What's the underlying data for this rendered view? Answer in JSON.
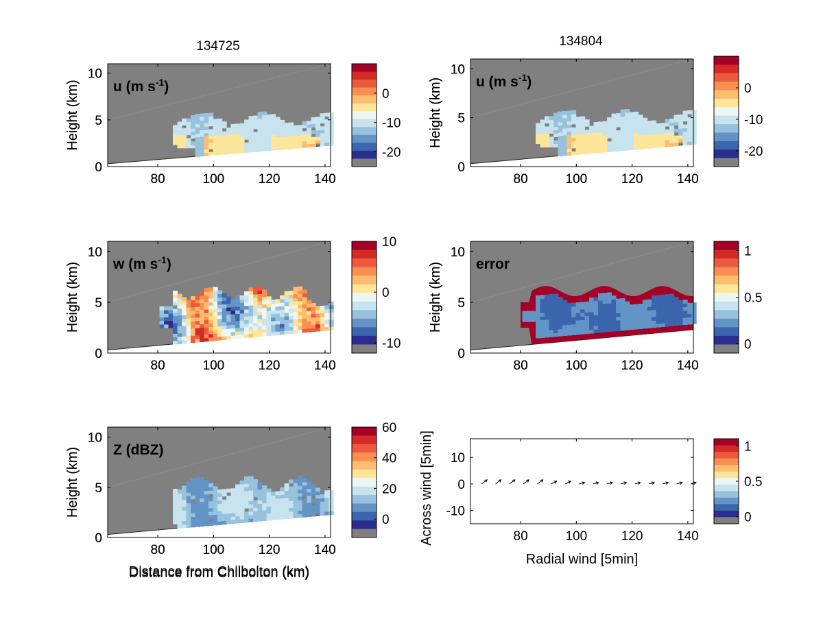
{
  "figure": {
    "col_titles": [
      "134725",
      "134804"
    ]
  },
  "colors": {
    "axes_bg": "#808080",
    "nodata": "#808080",
    "cmap": [
      "#2b2d8e",
      "#3b65ac",
      "#6394c6",
      "#98c1dd",
      "#c6e3ee",
      "#eef6f3",
      "#fde59a",
      "#fcbd6f",
      "#f98e52",
      "#ec5a3e",
      "#d32a26",
      "#a50026"
    ]
  },
  "chart_data": [
    {
      "id": "u1",
      "type": "heatmap",
      "label": "u (m s-1)",
      "label_main": "u (m s",
      "label_sup": "-1",
      "label_tail": ")",
      "xlabel": "",
      "ylabel": "Height (km)",
      "xlim": [
        62,
        142
      ],
      "ylim": [
        0,
        11
      ],
      "xticks": [
        80,
        100,
        120,
        140
      ],
      "yticks": [
        0,
        5,
        10
      ],
      "colorbar": {
        "ticks": [
          0,
          -10,
          -20
        ],
        "tick_labels": [
          "0",
          "-10",
          "-20"
        ],
        "range": [
          -25,
          10
        ]
      }
    },
    {
      "id": "u2",
      "type": "heatmap",
      "label": "u (m s-1)",
      "label_main": "u (m s",
      "label_sup": "-1",
      "label_tail": ")",
      "xlabel": "",
      "ylabel": "Height (km)",
      "xlim": [
        62,
        142
      ],
      "ylim": [
        0,
        11
      ],
      "xticks": [
        80,
        100,
        120,
        140
      ],
      "yticks": [
        0,
        5,
        10
      ],
      "colorbar": {
        "ticks": [
          0,
          -10,
          -20
        ],
        "tick_labels": [
          "0",
          "-10",
          "-20"
        ],
        "range": [
          -25,
          10
        ]
      }
    },
    {
      "id": "w",
      "type": "heatmap",
      "label": "w (m s-1)",
      "label_main": "w (m s",
      "label_sup": "-1",
      "label_tail": ")",
      "xlabel": "",
      "ylabel": "Height (km)",
      "xlim": [
        62,
        142
      ],
      "ylim": [
        0,
        11
      ],
      "xticks": [
        80,
        100,
        120,
        140
      ],
      "yticks": [
        0,
        5,
        10
      ],
      "colorbar": {
        "ticks": [
          10,
          0,
          -10
        ],
        "tick_labels": [
          "10",
          "0",
          "-10"
        ],
        "range": [
          -12,
          10
        ]
      }
    },
    {
      "id": "err",
      "type": "heatmap",
      "label": "error",
      "label_main": "error",
      "label_sup": "",
      "label_tail": "",
      "xlabel": "",
      "ylabel": "Height (km)",
      "xlim": [
        62,
        142
      ],
      "ylim": [
        0,
        11
      ],
      "xticks": [
        80,
        100,
        120,
        140
      ],
      "yticks": [
        0,
        5,
        10
      ],
      "colorbar": {
        "ticks": [
          1,
          0.5,
          0
        ],
        "tick_labels": [
          "1",
          "0.5",
          "0"
        ],
        "range": [
          -0.1,
          1.1
        ]
      }
    },
    {
      "id": "z",
      "type": "heatmap",
      "label": "Z (dBZ)",
      "label_main": "Z (dBZ)",
      "label_sup": "",
      "label_tail": "",
      "xlabel": "Distance from Chilbolton (km)",
      "ylabel": "Height (km)",
      "xlim": [
        62,
        142
      ],
      "ylim": [
        0,
        11
      ],
      "xticks": [
        80,
        100,
        120,
        140
      ],
      "yticks": [
        0,
        5,
        10
      ],
      "colorbar": {
        "ticks": [
          60,
          40,
          20,
          0
        ],
        "tick_labels": [
          "60",
          "40",
          "20",
          "0"
        ],
        "range": [
          -12,
          60
        ]
      }
    },
    {
      "id": "wind",
      "type": "scatter",
      "label": "",
      "xlabel": "Radial wind [5min]",
      "ylabel": "Across wind [5min]",
      "xlim": [
        62,
        142
      ],
      "ylim": [
        -15,
        17
      ],
      "xticks": [
        80,
        100,
        120,
        140
      ],
      "yticks": [
        10,
        0,
        -10
      ],
      "vectors": {
        "x": [
          66,
          71,
          76,
          81,
          86,
          91,
          96,
          101,
          106,
          111,
          116,
          121,
          126,
          131,
          136,
          141
        ],
        "y": [
          0,
          0,
          0,
          0,
          0,
          0,
          0,
          0,
          0,
          0,
          0,
          0,
          0,
          0,
          0,
          0
        ],
        "u": [
          4,
          4,
          4,
          4,
          4,
          4,
          4,
          4,
          4,
          4,
          4,
          4,
          4,
          4,
          4,
          4
        ],
        "v": [
          3,
          3,
          3,
          3,
          3,
          2,
          2,
          1,
          1,
          1,
          1,
          1,
          1,
          1,
          1,
          1
        ]
      },
      "colorbar": {
        "ticks": [
          1,
          0.5,
          0
        ],
        "tick_labels": [
          "1",
          "0.5",
          "0"
        ],
        "range": [
          -0.1,
          1.1
        ]
      }
    }
  ]
}
